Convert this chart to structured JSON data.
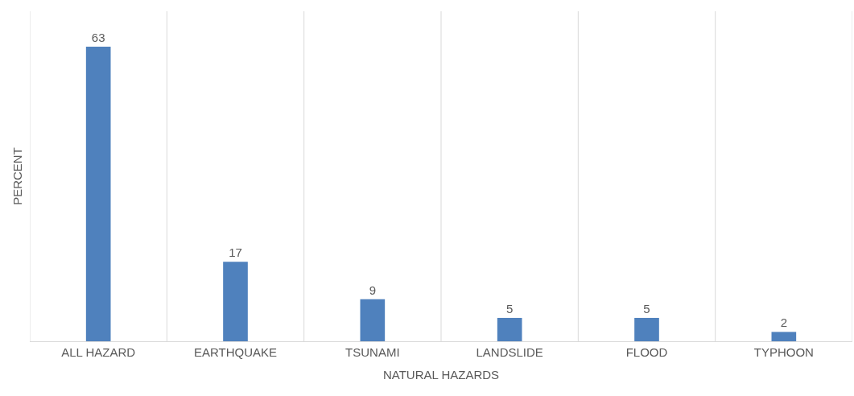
{
  "chart_data": {
    "type": "bar",
    "xlabel": "NATURAL HAZARDS",
    "ylabel": "PERCENT",
    "categories": [
      "ALL HAZARD",
      "EARTHQUAKE",
      "TSUNAMI",
      "LANDSLIDE",
      "FLOOD",
      "TYPHOON"
    ],
    "values": [
      63,
      17,
      9,
      5,
      5,
      2
    ],
    "color": "#4f81bd",
    "data_labels": true,
    "grid": "x",
    "legend": false
  }
}
